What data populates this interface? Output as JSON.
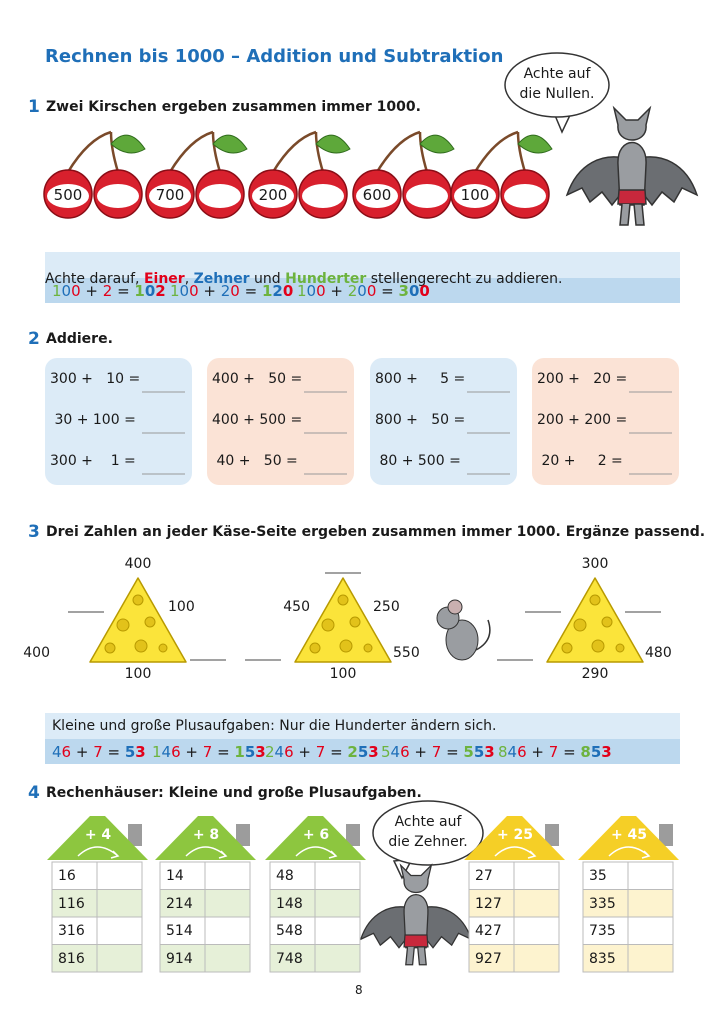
{
  "header": {
    "title": "Rechnen bis 1000 – Addition und Subtraktion"
  },
  "bubbles": [
    {
      "lines": [
        "Achte auf",
        "die Nullen."
      ]
    },
    {
      "lines": [
        "Achte auf",
        "die Zehner."
      ]
    }
  ],
  "task1": {
    "number": "1",
    "text": "Zwei Kirschen ergeben zusammen immer 1000.",
    "cherries": [
      500,
      700,
      200,
      600,
      100
    ]
  },
  "info1": {
    "parts": [
      "Achte darauf, ",
      "Einer",
      ", ",
      "Zehner",
      " und ",
      "Hunderter",
      " stellengerecht zu addieren."
    ],
    "examples": [
      "100 + 2 = 102",
      "100 + 20 = 120",
      "100 + 200 = 300"
    ]
  },
  "task2": {
    "number": "2",
    "text": "Addiere.",
    "boxes": [
      [
        "300 +   10 =",
        " 30 + 100 =",
        "300 +    1 ="
      ],
      [
        "400 +   50 =",
        "400 + 500 =",
        " 40 +   50 ="
      ],
      [
        "800 +     5 =",
        "800 +   50 =",
        " 80 + 500 ="
      ],
      [
        "200 +   20 =",
        "200 + 200 =",
        " 20 +     2 ="
      ]
    ]
  },
  "task3": {
    "number": "3",
    "text": "Drei Zahlen an jeder Käse-Seite ergeben zusammen immer 1000. Ergänze passend.",
    "cheeses": [
      {
        "top": 400,
        "right": 100,
        "bottom_left": 400,
        "bottom": 100
      },
      {
        "left": 450,
        "right": 250,
        "bottom": 100,
        "bottom_right": 550
      },
      {
        "top": 300,
        "bottom": 290,
        "bottom_right": 480
      }
    ]
  },
  "info2": {
    "text": "Kleine und große Plusaufgaben: Nur die Hunderter ändern sich.",
    "examples": [
      "46 + 7 = 53",
      "146 + 7 = 153",
      "246 + 7 = 253",
      "546 + 7 = 553",
      "846 + 7 = 853"
    ]
  },
  "task4": {
    "number": "4",
    "text": "Rechenhäuser: Kleine und große Plusaufgaben.",
    "houses": [
      {
        "label": "+ 4",
        "values": [
          16,
          116,
          316,
          816
        ]
      },
      {
        "label": "+ 8",
        "values": [
          14,
          214,
          514,
          914
        ]
      },
      {
        "label": "+ 6",
        "values": [
          48,
          148,
          548,
          748
        ]
      },
      {
        "label": "+ 25",
        "values": [
          27,
          127,
          427,
          927
        ]
      },
      {
        "label": "+ 45",
        "values": [
          35,
          335,
          735,
          835
        ]
      }
    ]
  },
  "footer": {
    "page": "8"
  }
}
